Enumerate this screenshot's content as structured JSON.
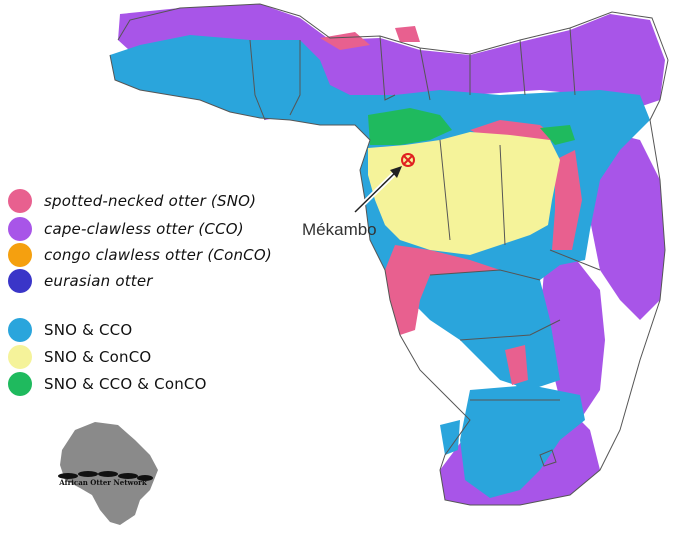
{
  "legend": [
    {
      "label": "spotted-necked otter (SNO)",
      "color": "#e8608f",
      "style": "italic"
    },
    {
      "label": "cape-clawless otter (CCO)",
      "color": "#a855e8",
      "style": "italic"
    },
    {
      "label": "congo clawless otter (ConCO)",
      "color": "#f5a00f",
      "style": "italic"
    },
    {
      "label": "eurasian otter",
      "color": "#3a35c8",
      "style": "italic"
    },
    {
      "label": "SNO & CCO",
      "color": "#2aa5dc",
      "style": "normal"
    },
    {
      "label": "SNO & ConCO",
      "color": "#f5f39a",
      "style": "normal"
    },
    {
      "label": "SNO & CCO & ConCO",
      "color": "#1fba5e",
      "style": "normal"
    }
  ],
  "map": {
    "callout_label": "Mékambo",
    "marker_color": "#e02020",
    "logo_text": "African Otter Network",
    "colors": {
      "sno": "#e8608f",
      "cco": "#a855e8",
      "sno_cco": "#2aa5dc",
      "sno_conco": "#f5f39a",
      "sno_cco_conco": "#1fba5e",
      "land_outline": "#555555",
      "logo_gray": "#8a8a8a"
    }
  }
}
